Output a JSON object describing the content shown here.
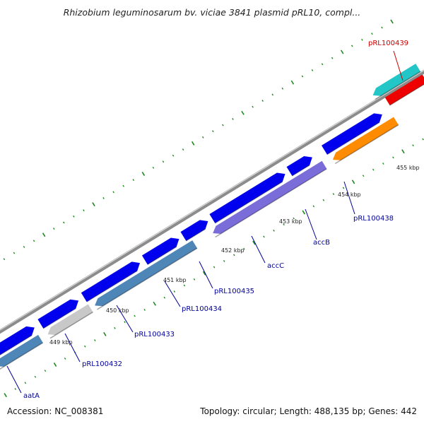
{
  "title": "Rhizobium leguminosarum bv. viciae 3841 plasmid pRL10, compl...",
  "footer": {
    "accession": "Accession: NC_008381",
    "summary": "Topology: circular; Length: 488,135 bp; Genes: 442"
  },
  "colors": {
    "blue": "#0000ee",
    "steel": "#4f86b8",
    "lavender": "#7a6cd9",
    "silver": "#c8c8c8",
    "orange": "#ff8c00",
    "cyan": "#22c6c6",
    "red": "#ee0000",
    "backbone": "#8c8c8c",
    "tick": "#1e8a1e",
    "label_blue": "#000099",
    "label_red": "#cc0000"
  },
  "scale_labels": [
    "449 kbp",
    "450 kbp",
    "451 kbp",
    "452 kbp",
    "453 kbp",
    "454 kbp",
    "455 kbp"
  ],
  "gene_labels": [
    {
      "text": "aatA",
      "color": "label_blue"
    },
    {
      "text": "pRL100432",
      "color": "label_blue"
    },
    {
      "text": "pRL100433",
      "color": "label_blue"
    },
    {
      "text": "pRL100434",
      "color": "label_blue"
    },
    {
      "text": "pRL100435",
      "color": "label_blue"
    },
    {
      "text": "accC",
      "color": "label_blue"
    },
    {
      "text": "accB",
      "color": "label_blue"
    },
    {
      "text": "pRL100438",
      "color": "label_blue"
    },
    {
      "text": "pRL100439",
      "color": "label_red"
    }
  ]
}
